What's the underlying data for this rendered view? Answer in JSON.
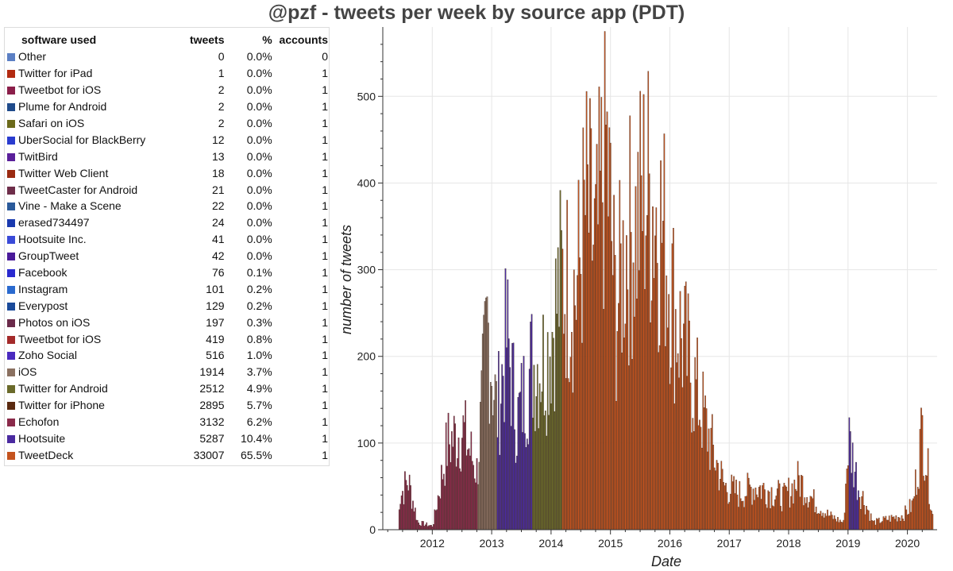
{
  "title": "@pzf - tweets per week by source app (PDT)",
  "legend": {
    "headers": {
      "software": "software used",
      "tweets": "tweets",
      "pct": "%",
      "accounts": "accounts"
    },
    "rows": [
      {
        "name": "Other",
        "tweets": "0",
        "pct": "0.0%",
        "accounts": "0",
        "color": "#5b7fc4"
      },
      {
        "name": "Twitter for iPad",
        "tweets": "1",
        "pct": "0.0%",
        "accounts": "1",
        "color": "#b22a10"
      },
      {
        "name": "Tweetbot for iOS",
        "tweets": "2",
        "pct": "0.0%",
        "accounts": "1",
        "color": "#8b1f4a"
      },
      {
        "name": "Plume for Android",
        "tweets": "2",
        "pct": "0.0%",
        "accounts": "1",
        "color": "#1f4b8b"
      },
      {
        "name": "Safari on iOS",
        "tweets": "2",
        "pct": "0.0%",
        "accounts": "1",
        "color": "#6b6a1a"
      },
      {
        "name": "UberSocial for BlackBerry",
        "tweets": "12",
        "pct": "0.0%",
        "accounts": "1",
        "color": "#2a3ccf"
      },
      {
        "name": "TwitBird",
        "tweets": "13",
        "pct": "0.0%",
        "accounts": "1",
        "color": "#5a1f9a"
      },
      {
        "name": "Twitter Web Client",
        "tweets": "18",
        "pct": "0.0%",
        "accounts": "1",
        "color": "#9a2a10"
      },
      {
        "name": "TweetCaster for Android",
        "tweets": "21",
        "pct": "0.0%",
        "accounts": "1",
        "color": "#6e2e4a"
      },
      {
        "name": "Vine - Make a Scene",
        "tweets": "22",
        "pct": "0.0%",
        "accounts": "1",
        "color": "#2a5a9a"
      },
      {
        "name": "erased734497",
        "tweets": "24",
        "pct": "0.0%",
        "accounts": "1",
        "color": "#1a3aaf"
      },
      {
        "name": "Hootsuite Inc.",
        "tweets": "41",
        "pct": "0.0%",
        "accounts": "1",
        "color": "#3a4ad8"
      },
      {
        "name": "GroupTweet",
        "tweets": "42",
        "pct": "0.0%",
        "accounts": "1",
        "color": "#4a1a9a"
      },
      {
        "name": "Facebook",
        "tweets": "76",
        "pct": "0.1%",
        "accounts": "1",
        "color": "#2a2acf"
      },
      {
        "name": "Instagram",
        "tweets": "101",
        "pct": "0.2%",
        "accounts": "1",
        "color": "#2a6acf"
      },
      {
        "name": "Everypost",
        "tweets": "129",
        "pct": "0.2%",
        "accounts": "1",
        "color": "#1a4a9a"
      },
      {
        "name": "Photos on iOS",
        "tweets": "197",
        "pct": "0.3%",
        "accounts": "1",
        "color": "#6a2a4a"
      },
      {
        "name": "Tweetbot for iOS",
        "tweets": "419",
        "pct": "0.8%",
        "accounts": "1",
        "color": "#a42a2a"
      },
      {
        "name": "Zoho Social",
        "tweets": "516",
        "pct": "1.0%",
        "accounts": "1",
        "color": "#4a2abf"
      },
      {
        "name": "iOS",
        "tweets": "1914",
        "pct": "3.7%",
        "accounts": "1",
        "color": "#8a7060"
      },
      {
        "name": "Twitter for Android",
        "tweets": "2512",
        "pct": "4.9%",
        "accounts": "1",
        "color": "#6a6a2a"
      },
      {
        "name": "Twitter for iPhone",
        "tweets": "2895",
        "pct": "5.7%",
        "accounts": "1",
        "color": "#5a2a10"
      },
      {
        "name": "Echofon",
        "tweets": "3132",
        "pct": "6.2%",
        "accounts": "1",
        "color": "#8a2a4a"
      },
      {
        "name": "Hootsuite",
        "tweets": "5287",
        "pct": "10.4%",
        "accounts": "1",
        "color": "#4a2aa0"
      },
      {
        "name": "TweetDeck",
        "tweets": "33007",
        "pct": "65.5%",
        "accounts": "1",
        "color": "#c4531e"
      }
    ]
  },
  "chart_data": {
    "type": "bar",
    "stacked": true,
    "title": "@pzf - tweets per week by source app (PDT)",
    "xlabel": "Date",
    "ylabel": "number of tweets",
    "xlim": [
      "2011-03",
      "2020-07"
    ],
    "ylim": [
      0,
      580
    ],
    "xticks": [
      "2012",
      "2013",
      "2014",
      "2015",
      "2016",
      "2017",
      "2018",
      "2019",
      "2020"
    ],
    "yticks": [
      0,
      100,
      200,
      300,
      400,
      500
    ],
    "grid": true,
    "series_colors": {
      "TweetDeck": "#c4531e",
      "Hootsuite": "#4a2aa0",
      "Echofon": "#8a2a4a",
      "Twitter for iPhone": "#5a2a10",
      "Twitter for Android": "#6a6a2a",
      "iOS": "#8a7060"
    },
    "approximate_weekly_envelope": {
      "x": [
        "2011-06",
        "2011-08",
        "2011-10",
        "2012-01",
        "2012-04",
        "2012-07",
        "2012-10",
        "2012-12",
        "2013-02",
        "2013-04",
        "2013-06",
        "2013-09",
        "2013-12",
        "2014-03",
        "2014-06",
        "2014-08",
        "2014-10",
        "2014-12",
        "2015-02",
        "2015-04",
        "2015-06",
        "2015-08",
        "2015-10",
        "2015-12",
        "2016-02",
        "2016-04",
        "2016-06",
        "2016-08",
        "2016-10",
        "2016-12",
        "2017-03",
        "2017-06",
        "2017-09",
        "2017-12",
        "2018-03",
        "2018-06",
        "2018-09",
        "2018-12",
        "2019-01",
        "2019-03",
        "2019-06",
        "2019-09",
        "2019-12",
        "2020-02",
        "2020-04",
        "2020-06"
      ],
      "values": [
        40,
        70,
        10,
        5,
        120,
        140,
        80,
        290,
        160,
        270,
        150,
        230,
        240,
        350,
        330,
        450,
        380,
        540,
        300,
        400,
        420,
        480,
        450,
        400,
        300,
        250,
        200,
        150,
        100,
        60,
        50,
        60,
        55,
        45,
        70,
        40,
        20,
        10,
        130,
        60,
        10,
        15,
        20,
        35,
        145,
        20
      ],
      "dominant_app": [
        "Echofon",
        "Echofon",
        "Echofon",
        "Echofon",
        "Echofon",
        "Echofon",
        "iOS",
        "iOS",
        "Hootsuite",
        "Hootsuite",
        "Hootsuite",
        "Twitter for Android",
        "Twitter for Android",
        "TweetDeck",
        "TweetDeck",
        "TweetDeck",
        "TweetDeck",
        "TweetDeck",
        "TweetDeck",
        "TweetDeck",
        "TweetDeck",
        "TweetDeck",
        "TweetDeck",
        "TweetDeck",
        "TweetDeck",
        "TweetDeck",
        "TweetDeck",
        "TweetDeck",
        "TweetDeck",
        "TweetDeck",
        "TweetDeck",
        "TweetDeck",
        "TweetDeck",
        "TweetDeck",
        "TweetDeck",
        "TweetDeck",
        "TweetDeck",
        "TweetDeck",
        "Hootsuite",
        "TweetDeck",
        "TweetDeck",
        "TweetDeck",
        "TweetDeck",
        "TweetDeck",
        "TweetDeck",
        "TweetDeck"
      ]
    }
  }
}
